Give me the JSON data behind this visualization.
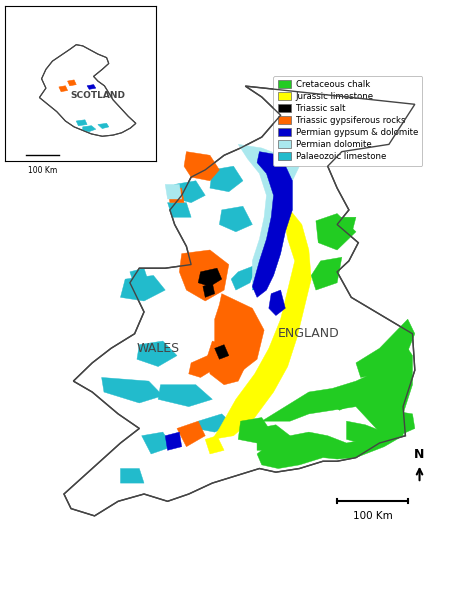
{
  "legend_items": [
    {
      "label": "Cretaceous chalk",
      "color": "#22cc22"
    },
    {
      "label": "Jurassic limestone",
      "color": "#ffff00"
    },
    {
      "label": "Triassic salt",
      "color": "#000000"
    },
    {
      "label": "Triassic gypsiferous rocks",
      "color": "#ff6600"
    },
    {
      "label": "Permian gypsum & dolomite",
      "color": "#0000cc"
    },
    {
      "label": "Permian dolomite",
      "color": "#aae8ee"
    },
    {
      "label": "Palaeozoic limestone",
      "color": "#22bbcc"
    }
  ],
  "background_color": "#ffffff",
  "outline_color": "#444444",
  "wales_label": "WALES",
  "england_label": "ENGLAND",
  "scotland_label": "SCOTLAND",
  "scale_bar_text": "100 Km",
  "figsize": [
    4.74,
    5.96
  ],
  "dpi": 100,
  "lon0": -5.8,
  "lon1": 2.0,
  "lat0": 49.8,
  "lat1": 56.1
}
